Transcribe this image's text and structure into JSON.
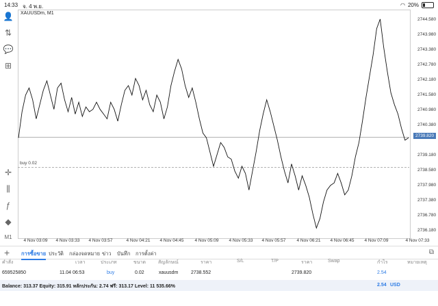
{
  "status": {
    "time": "14:33",
    "date": "จ. 4 พ.ย.",
    "battery": "20%"
  },
  "chart": {
    "symbol": "XAUUSDm, M1",
    "current_price": "2739.820",
    "buy_label": "buy 0.02",
    "price_labels": [
      "2744.580",
      "2743.980",
      "2743.380",
      "2742.780",
      "2742.180",
      "2741.580",
      "2740.980",
      "2740.380",
      "2739.180",
      "2738.580",
      "2737.980",
      "2737.380",
      "2736.780",
      "2736.180"
    ],
    "time_labels": [
      "4 Nov 03:09",
      "4 Nov 03:33",
      "4 Nov 03:57",
      "4 Nov 04:21",
      "4 Nov 04:45",
      "4 Nov 05:09",
      "4 Nov 05:33",
      "4 Nov 05:57",
      "4 Nov 06:21",
      "4 Nov 06:45",
      "4 Nov 07:09",
      "4 Nov 07:33"
    ]
  },
  "chart_data": {
    "type": "line",
    "title": "XAUUSDm, M1",
    "xlabel": "",
    "ylabel": "",
    "ylim": [
      2735.6,
      2745.2
    ],
    "x_start": "4 Nov 02:57",
    "x_end": "4 Nov 07:33",
    "series": [
      {
        "values": [
          2739.8,
          2740.9,
          2741.6,
          2741.9,
          2741.4,
          2740.6,
          2741.2,
          2741.8,
          2742.2,
          2741.6,
          2741.0,
          2741.9,
          2742.1,
          2741.4,
          2740.9,
          2741.5,
          2740.8,
          2741.3,
          2740.7,
          2741.1,
          2740.9,
          2741.0,
          2741.3,
          2741.0,
          2740.8,
          2740.6,
          2741.3,
          2741.0,
          2740.5,
          2741.2,
          2741.8,
          2742.0,
          2741.6,
          2742.3,
          2742.0,
          2741.4,
          2741.8,
          2741.2,
          2740.9,
          2741.6,
          2741.3,
          2740.6,
          2741.1,
          2742.0,
          2742.6,
          2743.1,
          2742.7,
          2742.0,
          2741.5,
          2741.9,
          2741.3,
          2740.6,
          2740.0,
          2739.8,
          2739.2,
          2738.6,
          2739.1,
          2739.6,
          2739.4,
          2739.0,
          2738.9,
          2738.4,
          2738.1,
          2738.6,
          2738.3,
          2737.6,
          2738.4,
          2739.2,
          2740.1,
          2740.8,
          2741.4,
          2740.9,
          2740.3,
          2739.7,
          2739.0,
          2738.4,
          2737.9,
          2738.7,
          2738.2,
          2737.6,
          2738.2,
          2737.8,
          2737.3,
          2736.6,
          2736.0,
          2736.4,
          2737.1,
          2737.6,
          2737.8,
          2737.9,
          2738.3,
          2737.9,
          2737.4,
          2737.6,
          2738.2,
          2739.0,
          2739.6,
          2740.5,
          2741.5,
          2742.4,
          2743.3,
          2744.4,
          2744.8,
          2743.6,
          2742.6,
          2741.7,
          2741.2,
          2740.8,
          2740.2,
          2739.7,
          2739.8
        ]
      }
    ],
    "hlines": [
      {
        "label": "buy 0.02",
        "value": 2738.552
      },
      {
        "value": 2739.82
      }
    ]
  },
  "tabs": [
    "การซื้อขาย",
    "ประวัติ",
    "กล่องจดหมาย",
    "ข่าว",
    "บันทึก",
    "การตั้งค่า"
  ],
  "table": {
    "headers": [
      "คำสั่ง",
      "เวลา",
      "ประเภท",
      "ขนาด",
      "สัญลักษณ์",
      "ราคา",
      "S/L",
      "T/P",
      "ราคา",
      "Swap",
      "กำไร",
      "หมายเหตุ"
    ],
    "row": [
      "659525850",
      "11.04 06:53",
      "buy",
      "0.02",
      "xauusdm",
      "2738.552",
      "",
      "",
      "2739.820",
      "",
      "2.54",
      ""
    ]
  },
  "balance": {
    "text": "Balance: 313.37 Equity: 315.91 หลักประกัน: 2.74 ฟรี: 313.17 Level: 11 535.66%",
    "profit": "2.54",
    "currency": "USD"
  },
  "colors": {
    "accent": "#2c7be5",
    "price_tag": "#4a7ab8",
    "line": "#111111"
  }
}
